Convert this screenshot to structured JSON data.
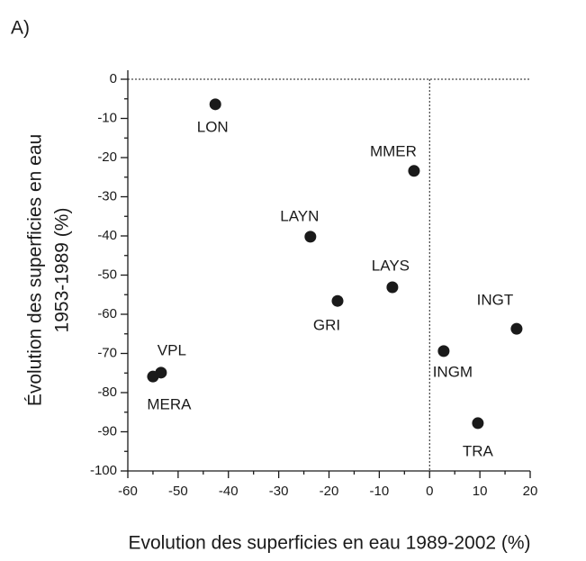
{
  "panel_label": "A)",
  "chart_data": {
    "type": "scatter",
    "xlabel": "Evolution des superficies en eau 1989-2002 (%)",
    "ylabel": [
      "Évolution des superficies en eau",
      "1953-1989 (%)"
    ],
    "labels": [
      "LON",
      "MMER",
      "LAYN",
      "LAYS",
      "GRI",
      "INGT",
      "INGM",
      "TRA",
      "VPL",
      "MERA"
    ],
    "x": [
      -42.6,
      -3.1,
      -23.7,
      -7.4,
      -18.3,
      17.3,
      2.8,
      9.6,
      -53.4,
      -55.0
    ],
    "values": [
      -6.4,
      -23.4,
      -40.2,
      -53.1,
      -56.6,
      -63.7,
      -69.4,
      -87.8,
      -74.9,
      -75.9
    ],
    "color": "#1a1a1a",
    "xlim": [
      -60,
      20
    ],
    "ylim": [
      -100,
      0
    ],
    "xticks": [
      -60,
      -50,
      -40,
      -30,
      -20,
      -10,
      0,
      10,
      20
    ],
    "yticks": [
      0,
      -10,
      -20,
      -30,
      -40,
      -50,
      -60,
      -70,
      -80,
      -90,
      -100
    ],
    "xticks_minor": [
      -55,
      -45,
      -35,
      -25,
      -15,
      -5,
      5,
      15
    ],
    "yticks_minor": [
      -5,
      -15,
      -25,
      -35,
      -45,
      -55,
      -65,
      -75,
      -85,
      -95
    ],
    "zero_lines": true
  }
}
